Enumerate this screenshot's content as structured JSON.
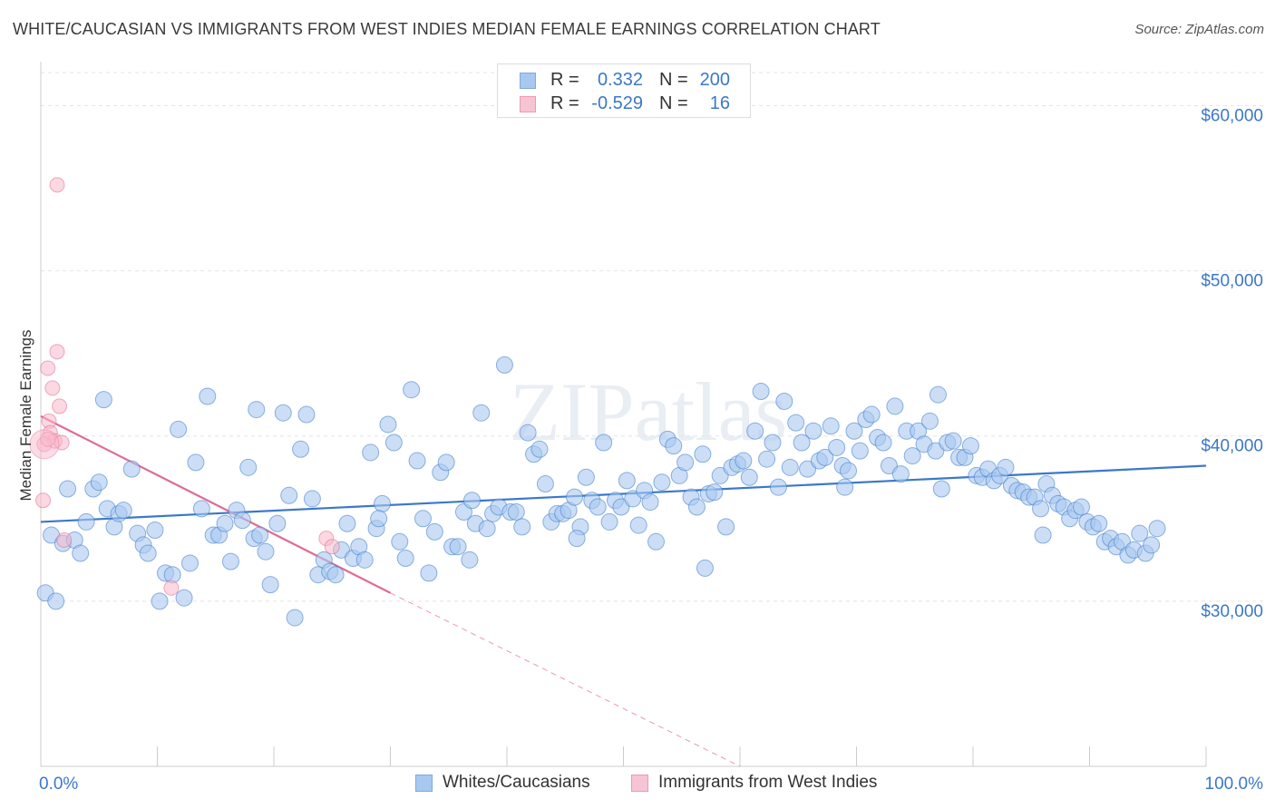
{
  "title": "WHITE/CAUCASIAN VS IMMIGRANTS FROM WEST INDIES MEDIAN FEMALE EARNINGS CORRELATION CHART",
  "source": "Source: ZipAtlas.com",
  "watermark": "ZIPatlas",
  "legend": {
    "rows": [
      {
        "r_label": "R =",
        "r_value": "0.332",
        "n_label": "N =",
        "n_value": "200",
        "color": "#a8c8f0"
      },
      {
        "r_label": "R =",
        "r_value": "-0.529",
        "n_label": "N =",
        "n_value": "16",
        "color": "#f7b8cb"
      }
    ]
  },
  "bottom_legend": [
    {
      "label": "Whites/Caucasians",
      "color": "#a8c8f0"
    },
    {
      "label": "Immigrants from West Indies",
      "color": "#f7b8cb"
    }
  ],
  "chart_data": {
    "type": "scatter",
    "title": "WHITE/CAUCASIAN VS IMMIGRANTS FROM WEST INDIES MEDIAN FEMALE EARNINGS CORRELATION CHART",
    "xlabel": "",
    "ylabel": "Median Female Earnings",
    "xlim": [
      0,
      100
    ],
    "ylim": [
      20000,
      62000
    ],
    "x_tick_labels": [
      "0.0%",
      "100.0%"
    ],
    "y_ticks": [
      30000,
      40000,
      50000,
      60000
    ],
    "y_tick_labels": [
      "$30,000",
      "$40,000",
      "$50,000",
      "$60,000"
    ],
    "grid": true,
    "legend_position": "top-center",
    "series": [
      {
        "name": "Whites/Caucasians",
        "color": "#3b78c9",
        "fill": "#a8c8f0",
        "trend": {
          "x": [
            0,
            100
          ],
          "y": [
            34800,
            38200
          ],
          "dashed_extension": false
        },
        "points": [
          [
            0.4,
            30500
          ],
          [
            1.3,
            30000
          ],
          [
            0.9,
            34000
          ],
          [
            1.9,
            33500
          ],
          [
            2.3,
            36800
          ],
          [
            2.9,
            33700
          ],
          [
            3.4,
            32900
          ],
          [
            3.9,
            34800
          ],
          [
            4.5,
            36800
          ],
          [
            5.4,
            42200
          ],
          [
            5.7,
            35600
          ],
          [
            6.3,
            34500
          ],
          [
            6.7,
            35300
          ],
          [
            7.1,
            35500
          ],
          [
            7.8,
            38000
          ],
          [
            8.3,
            34100
          ],
          [
            8.8,
            33400
          ],
          [
            9.2,
            32900
          ],
          [
            9.8,
            34300
          ],
          [
            10.2,
            30000
          ],
          [
            10.7,
            31700
          ],
          [
            11.3,
            31600
          ],
          [
            11.8,
            40400
          ],
          [
            12.3,
            30200
          ],
          [
            12.8,
            32300
          ],
          [
            13.3,
            38400
          ],
          [
            13.8,
            35600
          ],
          [
            14.3,
            42400
          ],
          [
            14.8,
            34000
          ],
          [
            15.3,
            34000
          ],
          [
            15.8,
            34700
          ],
          [
            16.3,
            32400
          ],
          [
            16.8,
            35500
          ],
          [
            17.3,
            34900
          ],
          [
            17.8,
            38100
          ],
          [
            18.3,
            33800
          ],
          [
            18.8,
            34000
          ],
          [
            19.3,
            33000
          ],
          [
            19.7,
            31000
          ],
          [
            20.3,
            34700
          ],
          [
            20.8,
            41400
          ],
          [
            21.3,
            36400
          ],
          [
            21.8,
            29000
          ],
          [
            22.3,
            39200
          ],
          [
            22.8,
            41300
          ],
          [
            23.3,
            36200
          ],
          [
            23.8,
            31600
          ],
          [
            24.3,
            32500
          ],
          [
            24.8,
            31800
          ],
          [
            25.3,
            31600
          ],
          [
            25.8,
            33100
          ],
          [
            26.3,
            34700
          ],
          [
            26.8,
            32600
          ],
          [
            27.3,
            33300
          ],
          [
            27.8,
            32500
          ],
          [
            28.3,
            39000
          ],
          [
            28.8,
            34400
          ],
          [
            29.3,
            35900
          ],
          [
            29.8,
            40700
          ],
          [
            30.3,
            39600
          ],
          [
            30.8,
            33600
          ],
          [
            31.3,
            32600
          ],
          [
            31.8,
            42800
          ],
          [
            32.3,
            38500
          ],
          [
            32.8,
            35000
          ],
          [
            33.3,
            31700
          ],
          [
            33.8,
            34200
          ],
          [
            34.3,
            37800
          ],
          [
            34.8,
            38400
          ],
          [
            35.3,
            33300
          ],
          [
            35.8,
            33300
          ],
          [
            36.3,
            35400
          ],
          [
            36.8,
            32500
          ],
          [
            37.3,
            34700
          ],
          [
            37.8,
            41400
          ],
          [
            38.3,
            34400
          ],
          [
            38.8,
            35300
          ],
          [
            39.3,
            35700
          ],
          [
            39.8,
            44300
          ],
          [
            40.3,
            35400
          ],
          [
            40.8,
            35400
          ],
          [
            41.3,
            34500
          ],
          [
            41.8,
            40200
          ],
          [
            42.3,
            38900
          ],
          [
            42.8,
            39200
          ],
          [
            43.3,
            37100
          ],
          [
            43.8,
            34800
          ],
          [
            44.3,
            35300
          ],
          [
            44.8,
            35300
          ],
          [
            45.3,
            35500
          ],
          [
            45.8,
            36300
          ],
          [
            46.3,
            34500
          ],
          [
            46.8,
            37500
          ],
          [
            47.3,
            36100
          ],
          [
            47.8,
            35700
          ],
          [
            48.3,
            39600
          ],
          [
            48.8,
            34800
          ],
          [
            49.3,
            36100
          ],
          [
            49.8,
            35700
          ],
          [
            50.3,
            37300
          ],
          [
            50.8,
            36200
          ],
          [
            51.3,
            34600
          ],
          [
            51.8,
            36700
          ],
          [
            52.3,
            36000
          ],
          [
            52.8,
            33600
          ],
          [
            53.3,
            37200
          ],
          [
            53.8,
            39800
          ],
          [
            54.3,
            39400
          ],
          [
            54.8,
            37600
          ],
          [
            55.3,
            38400
          ],
          [
            55.8,
            36300
          ],
          [
            56.3,
            35700
          ],
          [
            56.8,
            38900
          ],
          [
            57.3,
            36500
          ],
          [
            57.8,
            36600
          ],
          [
            58.3,
            37600
          ],
          [
            58.8,
            34500
          ],
          [
            59.3,
            38100
          ],
          [
            59.8,
            38300
          ],
          [
            60.3,
            38500
          ],
          [
            60.8,
            37500
          ],
          [
            61.3,
            40300
          ],
          [
            61.8,
            42700
          ],
          [
            62.3,
            38600
          ],
          [
            62.8,
            39600
          ],
          [
            63.3,
            36900
          ],
          [
            63.8,
            42100
          ],
          [
            64.3,
            38100
          ],
          [
            64.8,
            40800
          ],
          [
            65.3,
            39600
          ],
          [
            65.8,
            38000
          ],
          [
            66.3,
            40300
          ],
          [
            66.8,
            38500
          ],
          [
            67.3,
            38700
          ],
          [
            67.8,
            40600
          ],
          [
            68.3,
            39300
          ],
          [
            68.8,
            38200
          ],
          [
            69.3,
            37900
          ],
          [
            69.8,
            40300
          ],
          [
            70.3,
            39100
          ],
          [
            70.8,
            41000
          ],
          [
            71.3,
            41300
          ],
          [
            71.8,
            39900
          ],
          [
            72.3,
            39600
          ],
          [
            72.8,
            38200
          ],
          [
            73.3,
            41800
          ],
          [
            73.8,
            37700
          ],
          [
            74.3,
            40300
          ],
          [
            74.8,
            38800
          ],
          [
            75.3,
            40300
          ],
          [
            75.8,
            39500
          ],
          [
            76.3,
            40900
          ],
          [
            76.8,
            39100
          ],
          [
            77.3,
            36800
          ],
          [
            77.8,
            39600
          ],
          [
            78.3,
            39700
          ],
          [
            78.8,
            38700
          ],
          [
            79.3,
            38700
          ],
          [
            79.8,
            39400
          ],
          [
            80.3,
            37600
          ],
          [
            80.8,
            37500
          ],
          [
            81.3,
            38000
          ],
          [
            81.8,
            37300
          ],
          [
            82.3,
            37600
          ],
          [
            82.8,
            38100
          ],
          [
            83.3,
            37000
          ],
          [
            83.8,
            36700
          ],
          [
            84.3,
            36600
          ],
          [
            84.8,
            36300
          ],
          [
            85.3,
            36300
          ],
          [
            85.8,
            35600
          ],
          [
            86.3,
            37100
          ],
          [
            86.8,
            36400
          ],
          [
            87.3,
            35900
          ],
          [
            87.8,
            35700
          ],
          [
            88.3,
            35000
          ],
          [
            88.8,
            35500
          ],
          [
            89.3,
            35700
          ],
          [
            89.8,
            34800
          ],
          [
            90.3,
            34500
          ],
          [
            90.8,
            34700
          ],
          [
            91.3,
            33600
          ],
          [
            91.8,
            33800
          ],
          [
            92.3,
            33300
          ],
          [
            92.8,
            33600
          ],
          [
            93.3,
            32800
          ],
          [
            93.8,
            33100
          ],
          [
            94.3,
            34100
          ],
          [
            94.8,
            32900
          ],
          [
            95.3,
            33400
          ],
          [
            95.8,
            34400
          ],
          [
            5.0,
            37200
          ],
          [
            18.5,
            41600
          ],
          [
            29.0,
            35000
          ],
          [
            37.0,
            36100
          ],
          [
            46.0,
            33800
          ],
          [
            57.0,
            32000
          ],
          [
            69.0,
            36900
          ],
          [
            77.0,
            42500
          ],
          [
            86.0,
            34000
          ]
        ]
      },
      {
        "name": "Immigrants from West Indies",
        "color": "#e06b95",
        "fill": "#f7b8cb",
        "trend": {
          "x": [
            0,
            30
          ],
          "y": [
            41200,
            30500
          ],
          "dashed_extension": true,
          "dashed_to": [
            60,
            20000
          ]
        },
        "points": [
          [
            1.4,
            55200
          ],
          [
            1.4,
            45100
          ],
          [
            0.6,
            44100
          ],
          [
            1.0,
            42900
          ],
          [
            1.6,
            41800
          ],
          [
            0.7,
            40900
          ],
          [
            0.8,
            40200
          ],
          [
            1.2,
            39700
          ],
          [
            1.8,
            39600
          ],
          [
            0.3,
            39500
          ],
          [
            0.2,
            36100
          ],
          [
            2.0,
            33700
          ],
          [
            11.2,
            30800
          ],
          [
            24.5,
            33800
          ],
          [
            25.0,
            33300
          ],
          [
            0.6,
            39800
          ]
        ]
      }
    ]
  }
}
